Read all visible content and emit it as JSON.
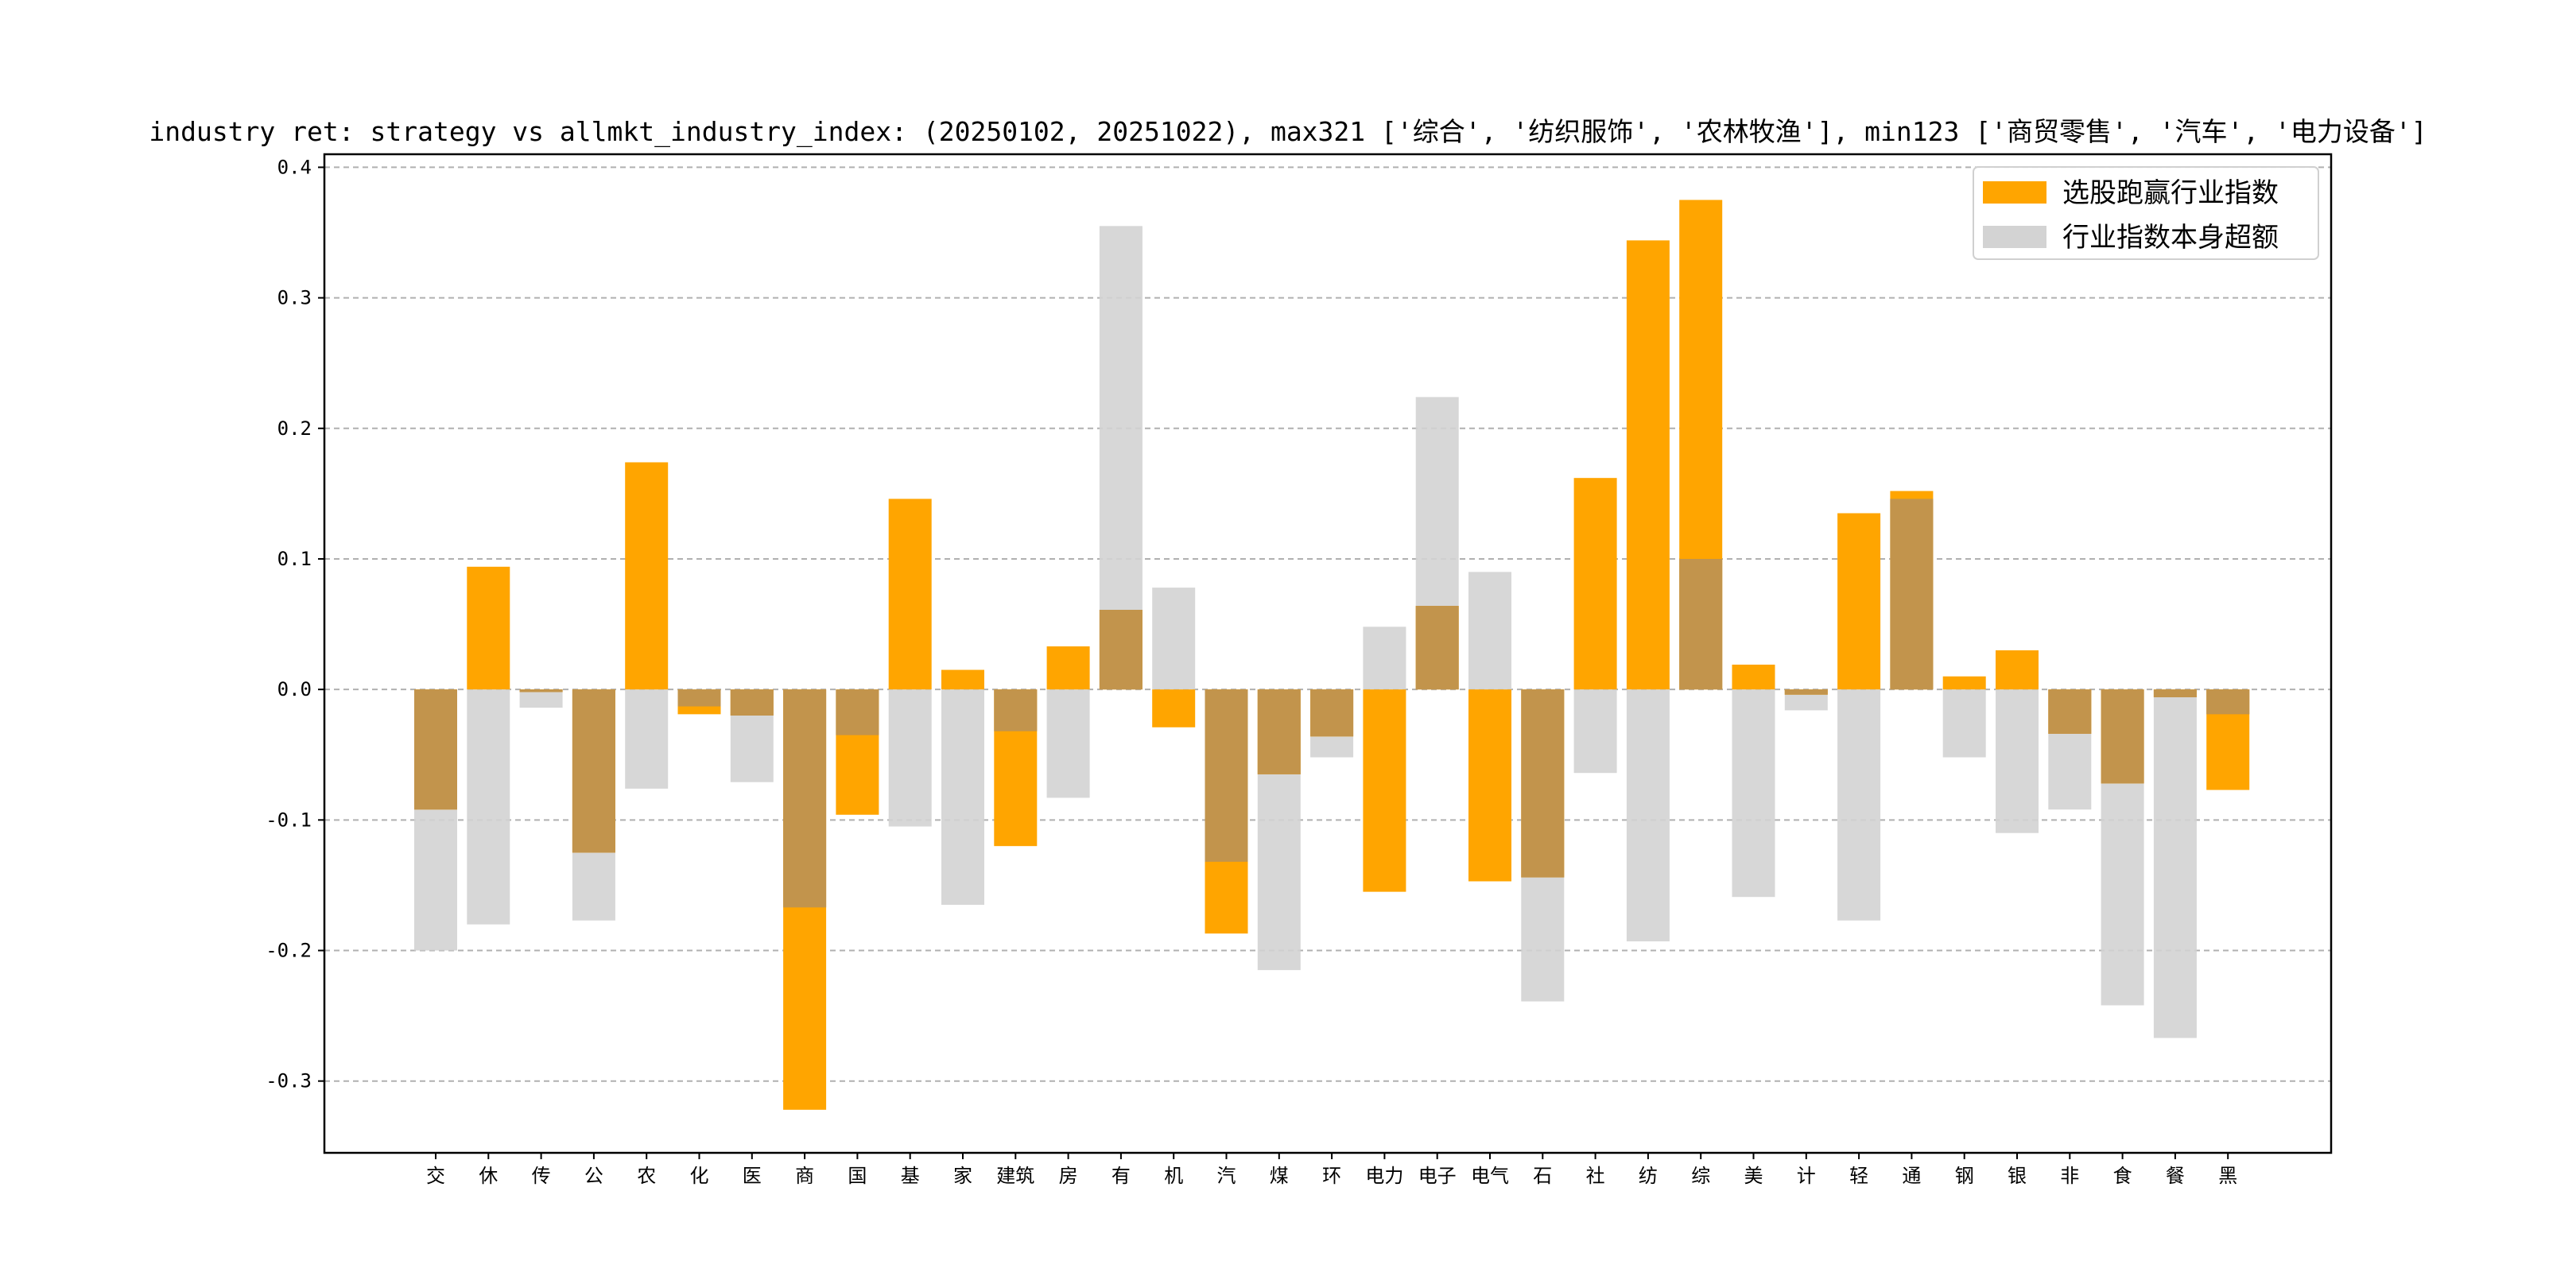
{
  "chart_data": {
    "type": "bar",
    "title": "industry ret: strategy vs allmkt_industry_index: (20250102, 20251022), max321 ['综合', '纺织服饰', '农林牧渔'], min123 ['商贸零售', '汽车', '电力设备']",
    "xlabel": "",
    "ylabel": "",
    "ylim": [
      -0.355,
      0.41
    ],
    "yticks": [
      0.4,
      0.3,
      0.2,
      0.1,
      0.0,
      -0.1,
      -0.2,
      -0.3
    ],
    "ytick_labels": [
      "0.4",
      "0.3",
      "0.2",
      "0.1",
      "0.0",
      "-0.1",
      "-0.2",
      "-0.3"
    ],
    "grid": "horizontal dashed",
    "legend_position": "top-right",
    "categories": [
      "交",
      "休",
      "传",
      "公",
      "农",
      "化",
      "医",
      "商",
      "国",
      "基",
      "家",
      "建筑",
      "房",
      "有",
      "机",
      "汽",
      "煤",
      "环",
      "电力",
      "电子",
      "电气",
      "石",
      "社",
      "纺",
      "综",
      "美",
      "计",
      "轻",
      "通",
      "钢",
      "银",
      "非",
      "食",
      "餐",
      "黑"
    ],
    "series": [
      {
        "name": "选股跑赢行业指数",
        "color": "#FFA500",
        "values": [
          -0.092,
          0.094,
          -0.002,
          -0.125,
          0.174,
          -0.019,
          -0.02,
          -0.322,
          -0.096,
          0.146,
          0.015,
          -0.12,
          0.033,
          0.061,
          -0.029,
          -0.187,
          -0.065,
          -0.036,
          -0.155,
          0.064,
          -0.147,
          -0.144,
          0.162,
          0.344,
          0.375,
          0.019,
          -0.004,
          0.135,
          0.152,
          0.01,
          0.03,
          -0.034,
          -0.072,
          -0.006,
          -0.077
        ]
      },
      {
        "name": "行业指数本身超额",
        "color": "#D3D3D3",
        "values": [
          -0.2,
          -0.18,
          -0.014,
          -0.177,
          -0.076,
          -0.013,
          -0.071,
          -0.167,
          -0.035,
          -0.105,
          -0.165,
          -0.032,
          -0.083,
          0.355,
          0.078,
          -0.132,
          -0.215,
          -0.052,
          0.048,
          0.224,
          0.09,
          -0.239,
          -0.064,
          -0.193,
          0.1,
          -0.159,
          -0.016,
          -0.177,
          0.146,
          -0.052,
          -0.11,
          -0.092,
          -0.242,
          -0.267,
          -0.019
        ]
      }
    ]
  }
}
